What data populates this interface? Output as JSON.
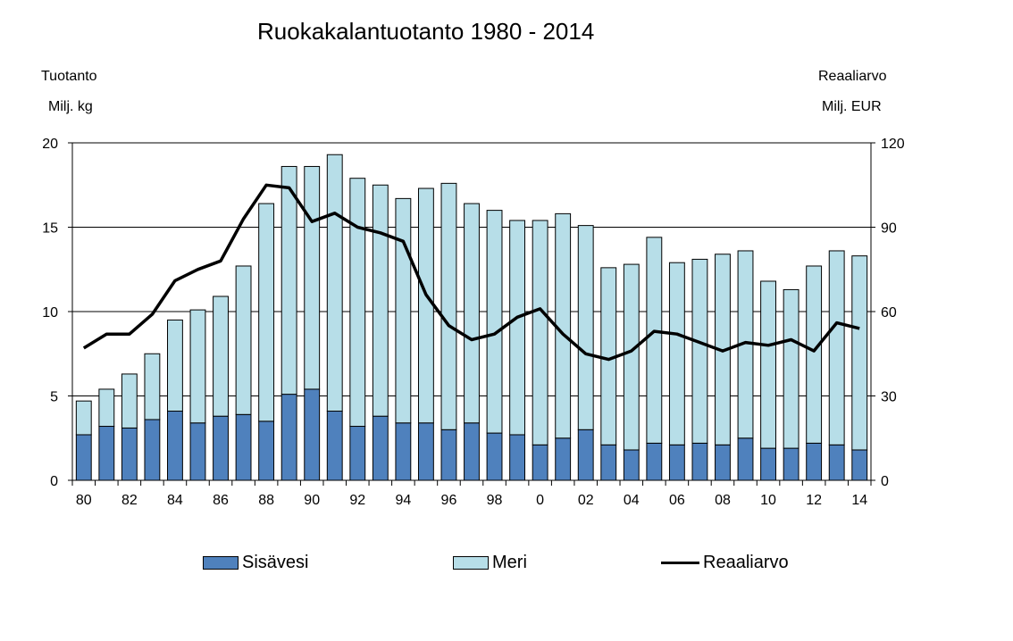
{
  "chart_data": {
    "type": "bar",
    "title": "Ruokakalantuotanto 1980 - 2014",
    "left_axis": {
      "label": "Tuotanto",
      "unit": "Milj. kg",
      "ylim": [
        0,
        20
      ],
      "ticks": [
        "0",
        "5",
        "10",
        "15",
        "20"
      ]
    },
    "right_axis": {
      "label": "Reaaliarvo",
      "unit": "Milj. EUR",
      "ylim": [
        0,
        120
      ],
      "ticks": [
        "0",
        "30",
        "60",
        "90",
        "120"
      ]
    },
    "categories": [
      "80",
      "81",
      "82",
      "83",
      "84",
      "85",
      "86",
      "87",
      "88",
      "89",
      "90",
      "91",
      "92",
      "93",
      "94",
      "95",
      "96",
      "97",
      "98",
      "99",
      "0",
      "01",
      "02",
      "03",
      "04",
      "05",
      "06",
      "07",
      "08",
      "09",
      "10",
      "11",
      "12",
      "13",
      "14"
    ],
    "x_tick_labels": [
      "80",
      "",
      "82",
      "",
      "84",
      "",
      "86",
      "",
      "88",
      "",
      "90",
      "",
      "92",
      "",
      "94",
      "",
      "96",
      "",
      "98",
      "",
      "0",
      "",
      "02",
      "",
      "04",
      "",
      "06",
      "",
      "08",
      "",
      "10",
      "",
      "12",
      "",
      "14"
    ],
    "series": [
      {
        "name": "Sisävesi",
        "type": "bar",
        "axis": "left",
        "color": "#4F81BD",
        "values": [
          2.7,
          3.2,
          3.1,
          3.6,
          4.1,
          3.4,
          3.8,
          3.9,
          3.5,
          5.1,
          5.4,
          4.1,
          3.2,
          3.8,
          3.4,
          3.4,
          3.0,
          3.4,
          2.8,
          2.7,
          2.1,
          2.5,
          3.0,
          2.1,
          1.8,
          2.2,
          2.1,
          2.2,
          2.1,
          2.5,
          1.9,
          1.9,
          2.2,
          2.1,
          1.8
        ]
      },
      {
        "name": "Meri",
        "type": "bar",
        "axis": "left",
        "color": "#B7DEE8",
        "values": [
          2.0,
          2.2,
          3.2,
          3.9,
          5.4,
          6.7,
          7.1,
          8.8,
          12.9,
          13.5,
          13.2,
          15.2,
          14.7,
          13.7,
          13.3,
          13.9,
          14.6,
          13.0,
          13.2,
          12.7,
          13.3,
          13.3,
          12.1,
          10.5,
          11.0,
          12.2,
          10.8,
          10.9,
          11.3,
          11.1,
          9.9,
          9.4,
          10.5,
          11.5,
          11.5
        ]
      },
      {
        "name": "Reaaliarvo",
        "type": "line",
        "axis": "right",
        "color": "#000000",
        "values": [
          47,
          52,
          52,
          59,
          71,
          75,
          78,
          93,
          105,
          104,
          92,
          95,
          90,
          88,
          85,
          66,
          55,
          50,
          52,
          58,
          61,
          52,
          45,
          43,
          46,
          53,
          52,
          49,
          46,
          49,
          48,
          50,
          46,
          56,
          54
        ]
      }
    ],
    "grid": true,
    "legend": "bottom"
  }
}
